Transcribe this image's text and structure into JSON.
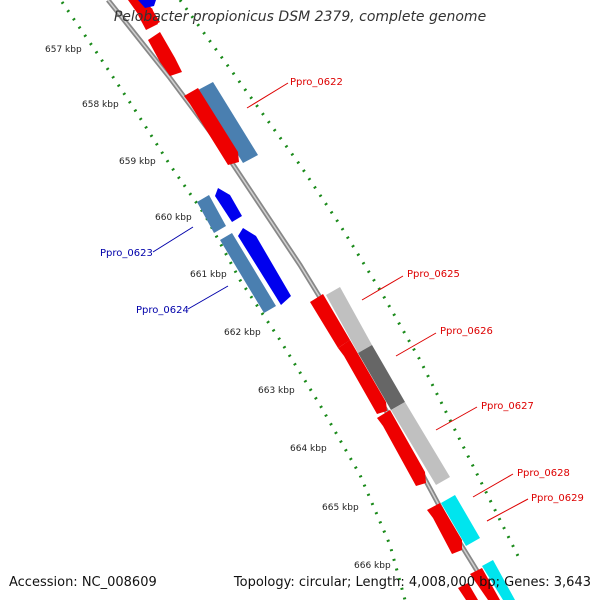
{
  "title": "Pelobacter propionicus DSM 2379, complete genome",
  "footer": {
    "accession": "Accession: NC_008609",
    "summary": "Topology: circular; Length: 4,008,000 bp; Genes: 3,643"
  },
  "ticks": [
    "657 kbp",
    "658 kbp",
    "659 kbp",
    "660 kbp",
    "661 kbp",
    "662 kbp",
    "663 kbp",
    "664 kbp",
    "665 kbp",
    "666 kbp"
  ],
  "genes": [
    {
      "label": "Ppro_0622",
      "color": "#dd0000"
    },
    {
      "label": "Ppro_0623",
      "color": "#0000aa"
    },
    {
      "label": "Ppro_0624",
      "color": "#0000aa"
    },
    {
      "label": "Ppro_0625",
      "color": "#dd0000"
    },
    {
      "label": "Ppro_0626",
      "color": "#dd0000"
    },
    {
      "label": "Ppro_0627",
      "color": "#dd0000"
    },
    {
      "label": "Ppro_0628",
      "color": "#dd0000"
    },
    {
      "label": "Ppro_0629",
      "color": "#dd0000"
    }
  ],
  "colors": {
    "backbone": "#888888",
    "tick_dots": "#1a8a1a",
    "cds_forward": "#ee0000",
    "cds_reverse": "#0000ee",
    "rna_block": "#4a7fb0",
    "grey_block": "#c0c0c0",
    "dark_grey_block": "#666666",
    "cyan_block": "#00e5ee"
  }
}
